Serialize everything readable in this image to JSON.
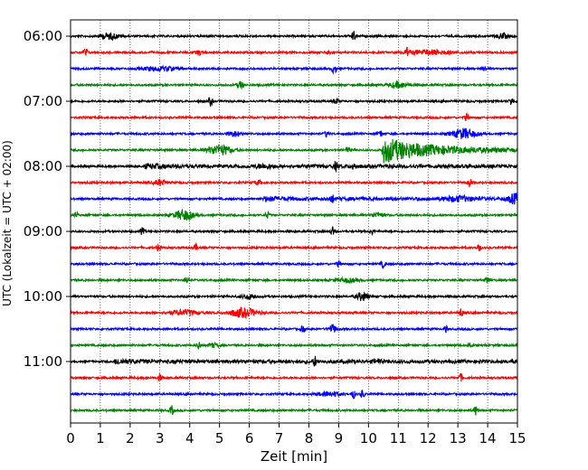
{
  "chart_data": {
    "type": "line",
    "xlabel": "Zeit  [min]",
    "ylabel": "UTC (Lokalzeit = UTC + 02:00)",
    "xlim": [
      0,
      15
    ],
    "x_ticks": [
      0,
      1,
      2,
      3,
      4,
      5,
      6,
      7,
      8,
      9,
      10,
      11,
      12,
      13,
      14,
      15
    ],
    "grid": "vertical-dotted",
    "trace_interval_minutes": 15,
    "trace_color_cycle": [
      "#000000",
      "#ff0000",
      "#0000ff",
      "#008000"
    ],
    "y_ticks": [
      "06:00",
      "07:00",
      "08:00",
      "09:00",
      "10:00",
      "11:00"
    ],
    "traces": [
      {
        "start": "06:00",
        "color": "#000000",
        "events": [
          {
            "t": 1.3,
            "amp": 0.45,
            "dur": 0.5
          },
          {
            "t": 9.5,
            "amp": 0.7,
            "dur": 0.12
          },
          {
            "t": 14.5,
            "amp": 0.4,
            "dur": 0.3
          }
        ]
      },
      {
        "start": "06:15",
        "color": "#ff0000",
        "events": [
          {
            "t": 0.5,
            "amp": 0.7,
            "dur": 0.1
          },
          {
            "t": 4.3,
            "amp": 0.35,
            "dur": 0.15
          },
          {
            "t": 8.7,
            "amp": 0.3,
            "dur": 0.2
          },
          {
            "t": 11.3,
            "amp": 0.6,
            "dur": 0.1
          },
          {
            "t": 12.0,
            "amp": 0.35,
            "dur": 1.2
          }
        ]
      },
      {
        "start": "06:30",
        "color": "#0000ff",
        "events": [
          {
            "t": 3.0,
            "amp": 0.3,
            "dur": 1.0
          },
          {
            "t": 8.85,
            "amp": 0.7,
            "dur": 0.12
          },
          {
            "t": 13.9,
            "amp": 0.5,
            "dur": 0.08
          }
        ]
      },
      {
        "start": "06:45",
        "color": "#008000",
        "events": [
          {
            "t": 5.7,
            "amp": 0.6,
            "dur": 0.15
          },
          {
            "t": 11.0,
            "amp": 0.45,
            "dur": 0.5
          }
        ]
      },
      {
        "start": "07:00",
        "color": "#000000",
        "events": [
          {
            "t": 4.7,
            "amp": 0.7,
            "dur": 0.1
          },
          {
            "t": 8.9,
            "amp": 0.6,
            "dur": 0.1
          },
          {
            "t": 14.8,
            "amp": 0.65,
            "dur": 0.1
          }
        ]
      },
      {
        "start": "07:15",
        "color": "#ff0000",
        "events": [
          {
            "t": 13.3,
            "amp": 0.7,
            "dur": 0.1
          }
        ]
      },
      {
        "start": "07:30",
        "color": "#0000ff",
        "events": [
          {
            "t": 5.5,
            "amp": 0.4,
            "dur": 0.4
          },
          {
            "t": 8.6,
            "amp": 0.5,
            "dur": 0.1
          },
          {
            "t": 10.4,
            "amp": 0.5,
            "dur": 0.1
          },
          {
            "t": 13.2,
            "amp": 0.8,
            "dur": 0.6
          }
        ]
      },
      {
        "start": "07:45",
        "color": "#008000",
        "events": [
          {
            "t": 5.0,
            "amp": 0.8,
            "dur": 0.6
          },
          {
            "t": 9.3,
            "amp": 0.5,
            "dur": 0.1
          },
          {
            "t": 10.5,
            "amp": 1.9,
            "dur": 4.0
          }
        ]
      },
      {
        "start": "08:00",
        "color": "#000000",
        "events": [
          {
            "t": 2.5,
            "amp": 0.25,
            "dur": 2.0
          },
          {
            "t": 6.5,
            "amp": 0.3,
            "dur": 0.4
          },
          {
            "t": 8.9,
            "amp": 0.55,
            "dur": 0.1
          },
          {
            "t": 9.5,
            "amp": 0.5,
            "dur": 0.1
          }
        ]
      },
      {
        "start": "08:15",
        "color": "#ff0000",
        "events": [
          {
            "t": 3.0,
            "amp": 0.45,
            "dur": 0.3
          },
          {
            "t": 6.3,
            "amp": 0.3,
            "dur": 0.2
          },
          {
            "t": 13.4,
            "amp": 0.6,
            "dur": 0.1
          }
        ]
      },
      {
        "start": "08:30",
        "color": "#0000ff",
        "events": [
          {
            "t": 6.5,
            "amp": 0.25,
            "dur": 1.5
          },
          {
            "t": 8.8,
            "amp": 0.5,
            "dur": 0.1
          },
          {
            "t": 13.0,
            "amp": 0.3,
            "dur": 0.8
          },
          {
            "t": 14.9,
            "amp": 0.7,
            "dur": 0.3
          }
        ]
      },
      {
        "start": "08:45",
        "color": "#008000",
        "events": [
          {
            "t": 0.2,
            "amp": 0.4,
            "dur": 0.1
          },
          {
            "t": 3.8,
            "amp": 0.8,
            "dur": 0.5
          },
          {
            "t": 6.6,
            "amp": 0.5,
            "dur": 0.1
          },
          {
            "t": 10.3,
            "amp": 0.4,
            "dur": 0.3
          }
        ]
      },
      {
        "start": "09:00",
        "color": "#000000",
        "events": [
          {
            "t": 2.4,
            "amp": 0.55,
            "dur": 0.1
          },
          {
            "t": 8.8,
            "amp": 0.7,
            "dur": 0.1
          },
          {
            "t": 10.1,
            "amp": 0.5,
            "dur": 0.1
          }
        ]
      },
      {
        "start": "09:15",
        "color": "#ff0000",
        "events": [
          {
            "t": 2.95,
            "amp": 0.45,
            "dur": 0.1
          },
          {
            "t": 4.2,
            "amp": 0.5,
            "dur": 0.1
          },
          {
            "t": 13.7,
            "amp": 0.75,
            "dur": 0.1
          }
        ]
      },
      {
        "start": "09:30",
        "color": "#0000ff",
        "events": [
          {
            "t": 9.0,
            "amp": 0.55,
            "dur": 0.1
          },
          {
            "t": 10.5,
            "amp": 0.55,
            "dur": 0.1
          }
        ]
      },
      {
        "start": "09:45",
        "color": "#008000",
        "events": [
          {
            "t": 3.9,
            "amp": 0.5,
            "dur": 0.1
          },
          {
            "t": 9.3,
            "amp": 0.3,
            "dur": 0.6
          },
          {
            "t": 14.0,
            "amp": 0.5,
            "dur": 0.1
          }
        ]
      },
      {
        "start": "10:00",
        "color": "#000000",
        "events": [
          {
            "t": 6.0,
            "amp": 0.35,
            "dur": 0.4
          },
          {
            "t": 9.8,
            "amp": 0.65,
            "dur": 0.3
          }
        ]
      },
      {
        "start": "10:15",
        "color": "#ff0000",
        "events": [
          {
            "t": 3.8,
            "amp": 0.4,
            "dur": 0.8
          },
          {
            "t": 5.8,
            "amp": 0.7,
            "dur": 0.7
          },
          {
            "t": 13.1,
            "amp": 0.6,
            "dur": 0.1
          }
        ]
      },
      {
        "start": "10:30",
        "color": "#0000ff",
        "events": [
          {
            "t": 7.8,
            "amp": 0.5,
            "dur": 0.1
          },
          {
            "t": 8.8,
            "amp": 0.65,
            "dur": 0.2
          },
          {
            "t": 12.6,
            "amp": 0.5,
            "dur": 0.1
          }
        ]
      },
      {
        "start": "10:45",
        "color": "#008000",
        "events": [
          {
            "t": 4.3,
            "amp": 0.7,
            "dur": 0.1
          },
          {
            "t": 4.8,
            "amp": 0.3,
            "dur": 0.3
          },
          {
            "t": 13.4,
            "amp": 0.5,
            "dur": 0.1
          }
        ]
      },
      {
        "start": "11:00",
        "color": "#000000",
        "events": [
          {
            "t": 1.5,
            "amp": 0.3,
            "dur": 1.5
          },
          {
            "t": 8.2,
            "amp": 0.7,
            "dur": 0.1
          },
          {
            "t": 10.3,
            "amp": 0.3,
            "dur": 0.2
          }
        ]
      },
      {
        "start": "11:15",
        "color": "#ff0000",
        "events": [
          {
            "t": 3.0,
            "amp": 0.55,
            "dur": 0.1
          },
          {
            "t": 13.1,
            "amp": 0.55,
            "dur": 0.1
          }
        ]
      },
      {
        "start": "11:30",
        "color": "#0000ff",
        "events": [
          {
            "t": 8.7,
            "amp": 0.35,
            "dur": 0.6
          },
          {
            "t": 9.5,
            "amp": 0.6,
            "dur": 0.1
          },
          {
            "t": 9.8,
            "amp": 0.6,
            "dur": 0.1
          }
        ]
      },
      {
        "start": "11:45",
        "color": "#008000",
        "events": [
          {
            "t": 3.4,
            "amp": 0.7,
            "dur": 0.1
          },
          {
            "t": 13.6,
            "amp": 0.7,
            "dur": 0.1
          }
        ]
      }
    ]
  }
}
